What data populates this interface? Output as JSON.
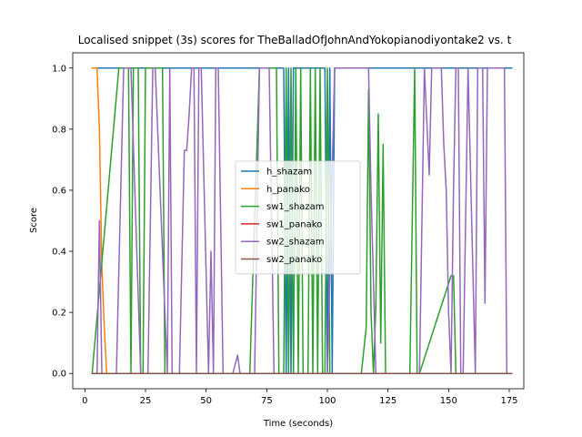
{
  "chart_data": {
    "type": "line",
    "title": "Localised snippet (3s) scores for TheBalladOfJohnAndYokopianodiyontake2 vs. t",
    "xlabel": "Time (seconds)",
    "ylabel": "Score",
    "xlim": [
      -5,
      181
    ],
    "ylim": [
      -0.05,
      1.05
    ],
    "xticks": [
      0,
      25,
      50,
      75,
      100,
      125,
      150,
      175
    ],
    "yticks": [
      0.0,
      0.2,
      0.4,
      0.6,
      0.8,
      1.0
    ],
    "x_tick_labels": [
      "0",
      "25",
      "50",
      "75",
      "100",
      "125",
      "150",
      "175"
    ],
    "y_tick_labels": [
      "0.0",
      "0.2",
      "0.4",
      "0.6",
      "0.8",
      "1.0"
    ],
    "legend_position": "center",
    "series": [
      {
        "name": "h_shazam",
        "color": "#1f77b4",
        "x": [
          3,
          82,
          83,
          84,
          85,
          86,
          87,
          99,
          100,
          101,
          102,
          103,
          176
        ],
        "y": [
          1,
          1,
          0,
          1,
          0,
          1,
          1,
          1,
          0,
          1,
          0,
          1,
          1
        ]
      },
      {
        "name": "h_panako",
        "color": "#ff7f0e",
        "x": [
          3,
          4,
          5,
          6,
          7,
          8,
          9,
          176
        ],
        "y": [
          1,
          1,
          1,
          0.8,
          0.35,
          0.15,
          0,
          0
        ]
      },
      {
        "name": "sw1_shazam",
        "color": "#2ca02c",
        "x": [
          3,
          14,
          18,
          19,
          20,
          21,
          22,
          23,
          24,
          25,
          32,
          33,
          34,
          68,
          72,
          76,
          79,
          80,
          82,
          83,
          84,
          85,
          86,
          87,
          88,
          89,
          90,
          91,
          92,
          93,
          94,
          95,
          96,
          97,
          98,
          99,
          100,
          101,
          102,
          103,
          104,
          105,
          106,
          114,
          116,
          117,
          118,
          119,
          120,
          121,
          122,
          123,
          124,
          125,
          126,
          134,
          136,
          137,
          138,
          151,
          152,
          153,
          154,
          155,
          176
        ],
        "y": [
          0,
          1,
          1,
          0,
          1,
          1,
          1,
          0,
          0,
          1,
          1,
          0,
          0,
          0,
          1,
          1,
          1,
          0,
          0,
          1,
          0,
          1,
          0,
          1,
          0,
          1,
          0,
          0,
          0,
          1,
          0,
          1,
          0,
          1,
          0,
          0,
          1,
          0,
          0,
          0,
          0,
          0,
          0,
          0,
          0.15,
          0.93,
          0.2,
          0,
          0.22,
          0.85,
          0.1,
          0.75,
          0,
          0,
          0,
          0,
          1,
          0,
          0,
          0.32,
          0.32,
          0,
          0,
          0,
          0
        ]
      },
      {
        "name": "sw1_panako",
        "color": "#d62728",
        "x": [
          3,
          176
        ],
        "y": [
          0,
          0
        ]
      },
      {
        "name": "sw2_shazam",
        "color": "#9467bd",
        "x": [
          3,
          5,
          6,
          7,
          11,
          13,
          16,
          17,
          18,
          19,
          23,
          26,
          28,
          29,
          34,
          35,
          36,
          37,
          39,
          41,
          42,
          43,
          44,
          45,
          46,
          47,
          48,
          51,
          52,
          53,
          54,
          55,
          57,
          58,
          59,
          61,
          63,
          64,
          65,
          66,
          67,
          68,
          69,
          70,
          72,
          74,
          75,
          76,
          78,
          98,
          99,
          100,
          103,
          104,
          106,
          114,
          116,
          117,
          118,
          119,
          120,
          121,
          138,
          140,
          142,
          143,
          144,
          145,
          146,
          147,
          148,
          149,
          150,
          151,
          152,
          153,
          154,
          155,
          156,
          158,
          161,
          162,
          163,
          164,
          165,
          166,
          167,
          168,
          170,
          173,
          174,
          176
        ],
        "y": [
          0,
          0,
          0.5,
          0,
          0,
          0,
          1,
          1,
          1,
          1,
          0,
          0,
          1,
          1,
          0,
          1,
          0,
          0,
          0,
          0.73,
          0.73,
          0.85,
          1,
          1,
          0,
          1,
          1,
          0,
          0.4,
          0,
          1,
          1,
          0,
          0,
          0,
          0,
          0.06,
          0,
          0,
          0,
          0,
          0,
          0,
          0,
          1,
          1,
          1,
          1,
          0,
          0,
          0,
          0,
          1,
          1,
          1,
          1,
          1,
          1,
          0.6,
          0.3,
          0,
          0,
          0,
          1,
          0.65,
          1,
          1,
          1,
          1,
          1,
          0.75,
          0.6,
          0.2,
          0,
          0.6,
          1,
          1,
          0,
          0,
          1,
          0,
          1,
          1,
          1,
          0.23,
          1,
          1,
          1,
          1,
          1,
          0,
          0
        ]
      },
      {
        "name": "sw2_panako",
        "color": "#8c564b",
        "x": [
          3,
          176
        ],
        "y": [
          0,
          0
        ]
      }
    ]
  }
}
